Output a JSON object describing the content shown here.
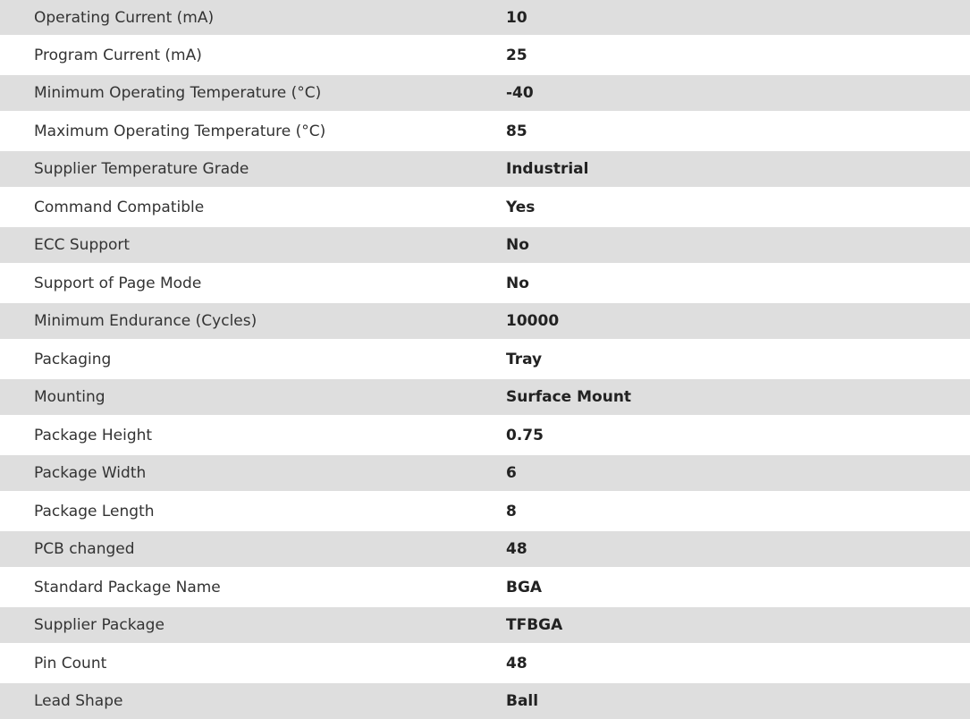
{
  "rows": [
    {
      "label": "Operating Current (mA)",
      "value": "10"
    },
    {
      "label": "Program Current (mA)",
      "value": "25"
    },
    {
      "label": "Minimum Operating Temperature (°C)",
      "value": "-40"
    },
    {
      "label": "Maximum Operating Temperature (°C)",
      "value": "85"
    },
    {
      "label": "Supplier Temperature Grade",
      "value": "Industrial"
    },
    {
      "label": "Command Compatible",
      "value": "Yes"
    },
    {
      "label": "ECC Support",
      "value": "No"
    },
    {
      "label": "Support of Page Mode",
      "value": "No"
    },
    {
      "label": "Minimum Endurance (Cycles)",
      "value": "10000"
    },
    {
      "label": "Packaging",
      "value": "Tray"
    },
    {
      "label": "Mounting",
      "value": "Surface Mount"
    },
    {
      "label": "Package Height",
      "value": "0.75"
    },
    {
      "label": "Package Width",
      "value": "6"
    },
    {
      "label": "Package Length",
      "value": "8"
    },
    {
      "label": "PCB changed",
      "value": "48"
    },
    {
      "label": "Standard Package Name",
      "value": "BGA"
    },
    {
      "label": "Supplier Package",
      "value": "TFBGA"
    },
    {
      "label": "Pin Count",
      "value": "48"
    },
    {
      "label": "Lead Shape",
      "value": "Ball"
    }
  ]
}
